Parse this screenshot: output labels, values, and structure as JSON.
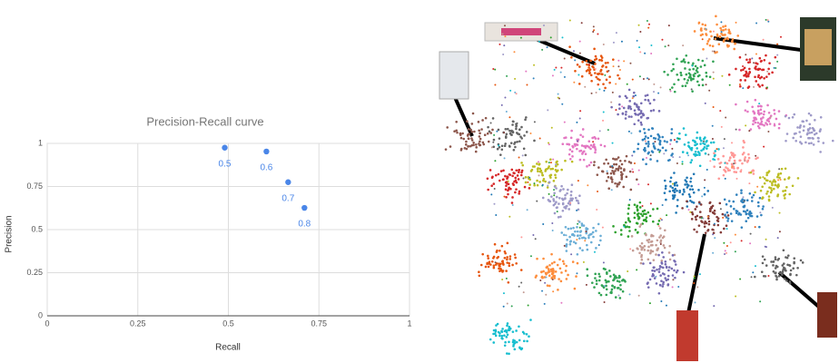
{
  "chart_data": {
    "type": "scatter",
    "title": "Precision-Recall curve",
    "x_label": "Recall",
    "y_label": "Precision",
    "x": [
      0.49,
      0.605,
      0.665,
      0.71
    ],
    "values": [
      0.975,
      0.953,
      0.775,
      0.626
    ],
    "point_labels": [
      0.5,
      0.6,
      0.7,
      0.8
    ],
    "color": "#4a86e8",
    "xlim": [
      0,
      1
    ],
    "ylim": [
      0,
      1
    ],
    "xticks": [
      0,
      0.25,
      0.5,
      0.75,
      1
    ],
    "yticks": [
      0,
      0.25,
      0.5,
      0.75,
      1
    ],
    "grid": true
  }
}
